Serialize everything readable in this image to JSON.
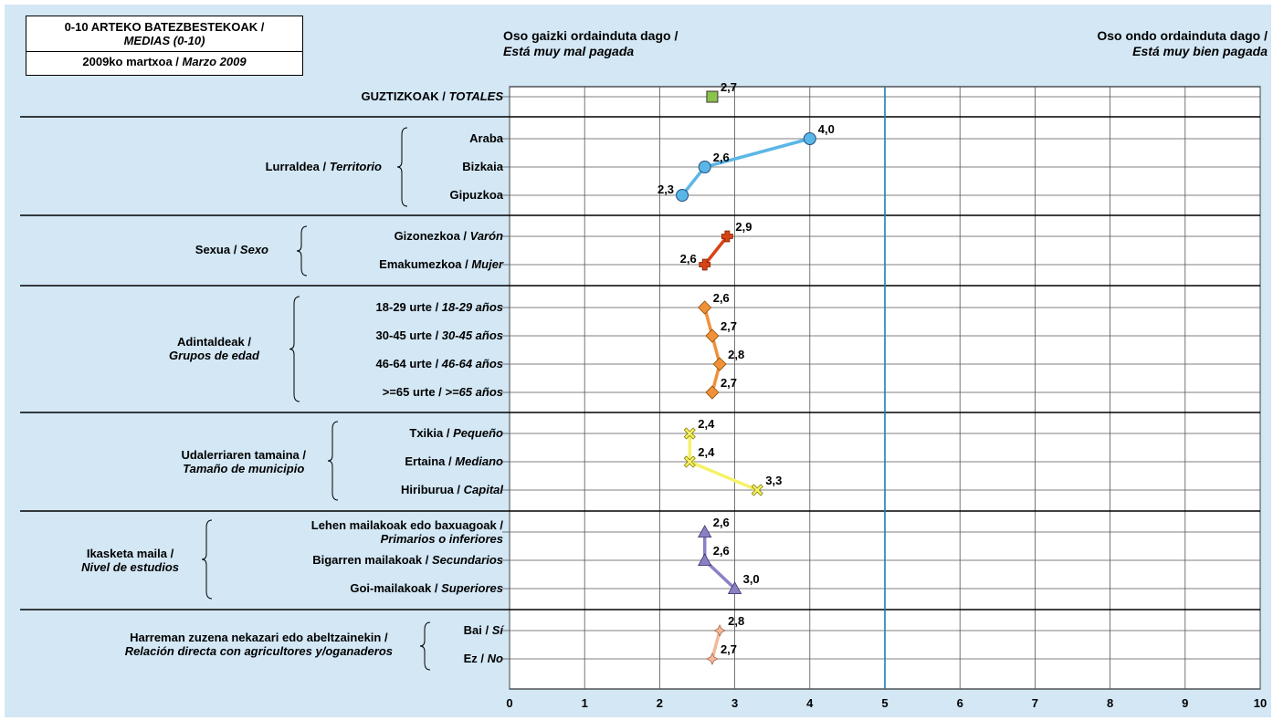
{
  "title": {
    "line1": "0-10 ARTEKO BATEZBESTEKOAK /",
    "line2": "MEDIAS (0-10)",
    "date_eu": "2009ko martxoa / ",
    "date_es": "Marzo 2009"
  },
  "scale_headers": {
    "left_eu": "Oso gaizki ordainduta dago /",
    "left_es": "Está muy mal pagada",
    "right_eu": "Oso ondo ordainduta dago /",
    "right_es": "Está muy bien pagada"
  },
  "groups": [
    {
      "label_eu": "",
      "label_es": ""
    },
    {
      "label_eu": "Lurraldea / ",
      "label_es": "Territorio"
    },
    {
      "label_eu": "Sexua / ",
      "label_es": "Sexo"
    },
    {
      "label_eu": "Adintaldeak /",
      "label_es": "Grupos de edad"
    },
    {
      "label_eu": "Udalerriaren tamaina /",
      "label_es": "Tamaño de municipio"
    },
    {
      "label_eu": "Ikasketa maila /",
      "label_es": "Nivel de estudios"
    },
    {
      "label_eu": "Harreman zuzena nekazari edo abeltzainekin /",
      "label_es": "Relación directa con agricultores y/oganaderos"
    }
  ],
  "chart_data": {
    "type": "line",
    "xlim": [
      0,
      10
    ],
    "x_ticks": [
      0,
      1,
      2,
      3,
      4,
      5,
      6,
      7,
      8,
      9,
      10
    ],
    "reference_line": 5,
    "series": [
      {
        "group": 0,
        "marker": "square",
        "color": "#8bc34a",
        "rows": [
          {
            "label_eu": "GUZTIZKOAK / ",
            "label_es": "TOTALES",
            "value": 2.7,
            "display": "2,7"
          }
        ]
      },
      {
        "group": 1,
        "marker": "circle",
        "color": "#5bb6e8",
        "rows": [
          {
            "label_eu": "Araba",
            "label_es": "",
            "value": 4.0,
            "display": "4,0"
          },
          {
            "label_eu": "Bizkaia",
            "label_es": "",
            "value": 2.6,
            "display": "2,6"
          },
          {
            "label_eu": "Gipuzkoa",
            "label_es": "",
            "value": 2.3,
            "display": "2,3"
          }
        ]
      },
      {
        "group": 2,
        "marker": "cross",
        "color": "#d84315",
        "rows": [
          {
            "label_eu": "Gizonezkoa / ",
            "label_es": "Varón",
            "value": 2.9,
            "display": "2,9"
          },
          {
            "label_eu": "Emakumezkoa / ",
            "label_es": "Mujer",
            "value": 2.6,
            "display": "2,6"
          }
        ]
      },
      {
        "group": 3,
        "marker": "diamond",
        "color": "#f0913a",
        "rows": [
          {
            "label_eu": "18-29 urte / ",
            "label_es": "18-29 años",
            "value": 2.6,
            "display": "2,6"
          },
          {
            "label_eu": "30-45 urte / ",
            "label_es": "30-45 años",
            "value": 2.7,
            "display": "2,7"
          },
          {
            "label_eu": "46-64 urte / ",
            "label_es": "46-64 años",
            "value": 2.8,
            "display": "2,8"
          },
          {
            "label_eu": ">=65 urte / ",
            "label_es": ">=65 años",
            "value": 2.7,
            "display": "2,7"
          }
        ]
      },
      {
        "group": 4,
        "marker": "x",
        "color": "#f5f26a",
        "rows": [
          {
            "label_eu": "Txikia / ",
            "label_es": "Pequeño",
            "value": 2.4,
            "display": "2,4"
          },
          {
            "label_eu": "Ertaina / ",
            "label_es": "Mediano",
            "value": 2.4,
            "display": "2,4"
          },
          {
            "label_eu": "Hiriburua / ",
            "label_es": "Capital",
            "value": 3.3,
            "display": "3,3"
          }
        ]
      },
      {
        "group": 5,
        "marker": "triangle",
        "color": "#8c7fc4",
        "rows": [
          {
            "label_eu": "Lehen mailakoak edo baxuagoak /",
            "label_es": "Primarios o inferiores",
            "value": 2.6,
            "display": "2,6"
          },
          {
            "label_eu": "Bigarren mailakoak / ",
            "label_es": "Secundarios",
            "value": 2.6,
            "display": "2,6"
          },
          {
            "label_eu": "Goi-mailakoak / ",
            "label_es": "Superiores",
            "value": 3.0,
            "display": "3,0"
          }
        ]
      },
      {
        "group": 6,
        "marker": "star",
        "color": "#f4b99a",
        "rows": [
          {
            "label_eu": "Bai / ",
            "label_es": "Sí",
            "value": 2.8,
            "display": "2,8"
          },
          {
            "label_eu": "Ez / ",
            "label_es": "No",
            "value": 2.7,
            "display": "2,7"
          }
        ]
      }
    ]
  }
}
